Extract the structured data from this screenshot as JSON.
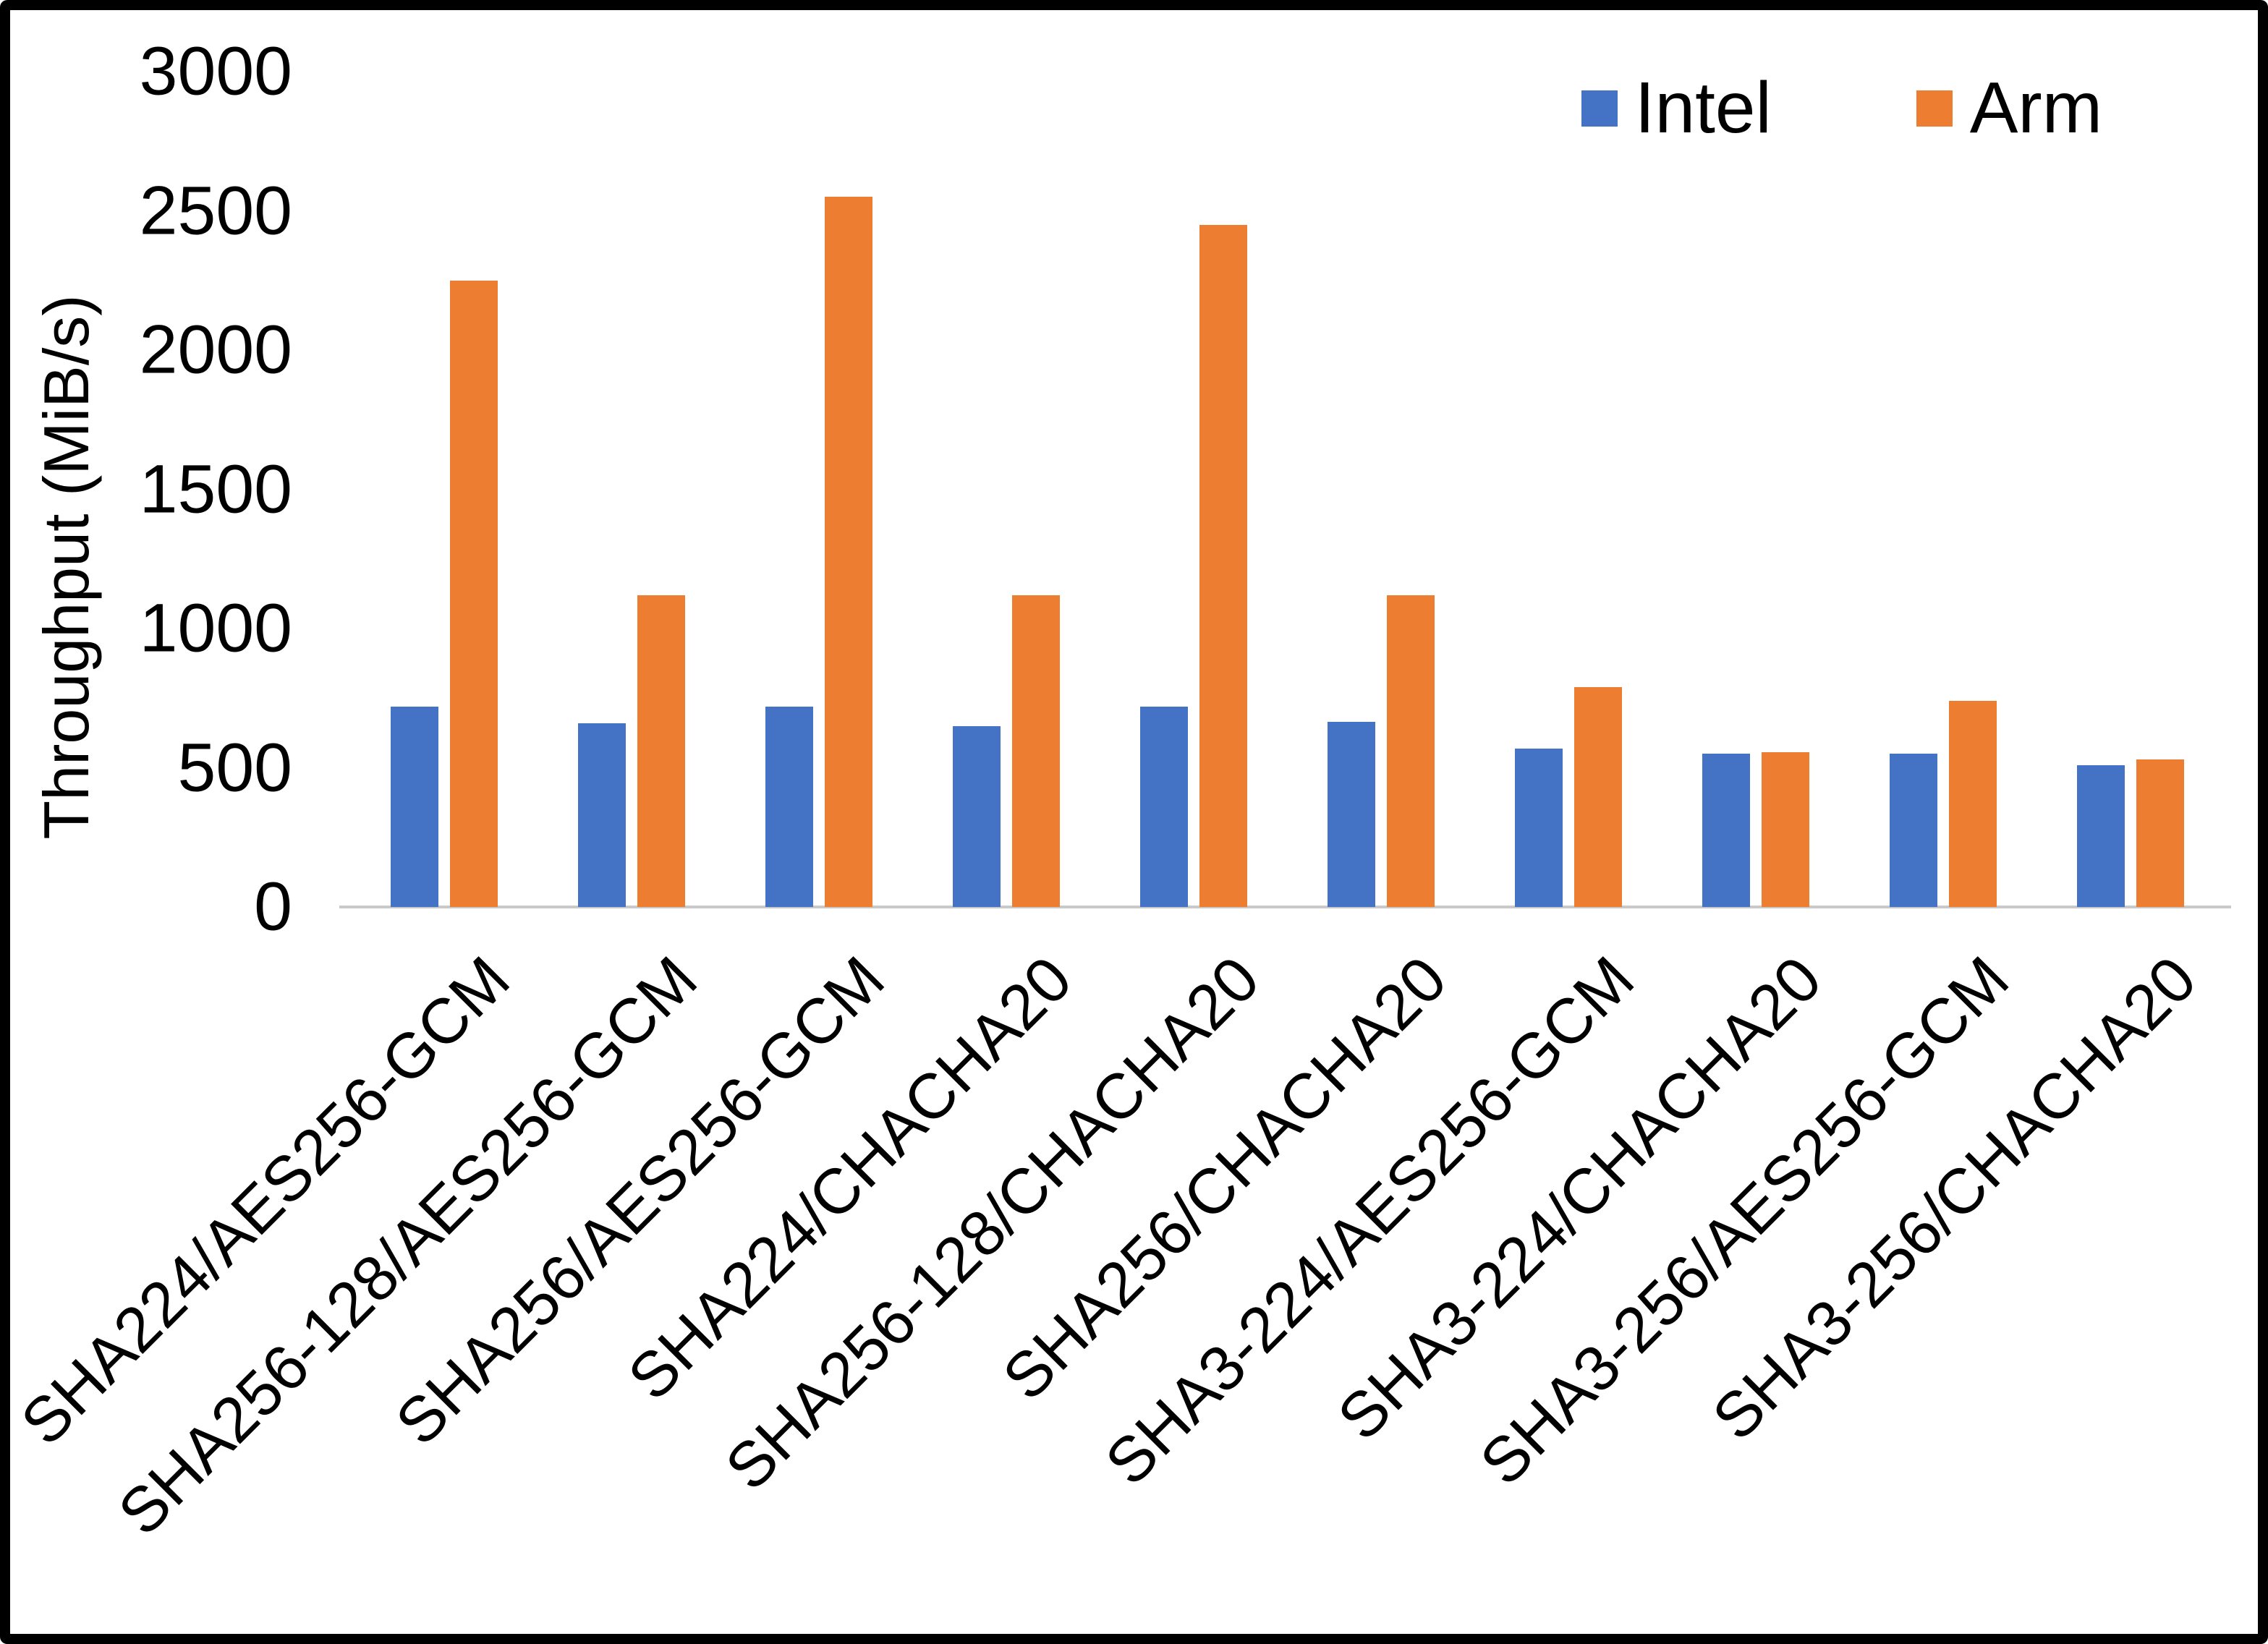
{
  "figure": {
    "background_color": "#ffffff",
    "border_color": "#000000",
    "axis_line_color": "#c9c9c9"
  },
  "chart_data": {
    "type": "bar",
    "title": "",
    "xlabel": "",
    "ylabel": "Throughput (MiB/s)",
    "ylim": [
      0,
      3000
    ],
    "yticks": [
      0,
      500,
      1000,
      1500,
      2000,
      2500,
      3000
    ],
    "grid": false,
    "legend_position": "top-right",
    "categories": [
      "SHA224/AES256-GCM",
      "SHA256-128/AES256-GCM",
      "SHA256/AES256-GCM",
      "SHA224/CHACHA20",
      "SHA256-128/CHACHA20",
      "SHA256/CHACHA20",
      "SHA3-224/AES256-GCM",
      "SHA3-224/CHACHA20",
      "SHA3-256/AES256-GCM",
      "SHA3-256/CHACHA20"
    ],
    "series": [
      {
        "name": "Intel",
        "color": "#4472C4",
        "values": [
          720,
          660,
          720,
          650,
          720,
          665,
          570,
          550,
          550,
          510
        ]
      },
      {
        "name": "Arm",
        "color": "#ED7D31",
        "values": [
          2250,
          1120,
          2550,
          1120,
          2450,
          1120,
          790,
          555,
          740,
          530
        ]
      }
    ]
  }
}
